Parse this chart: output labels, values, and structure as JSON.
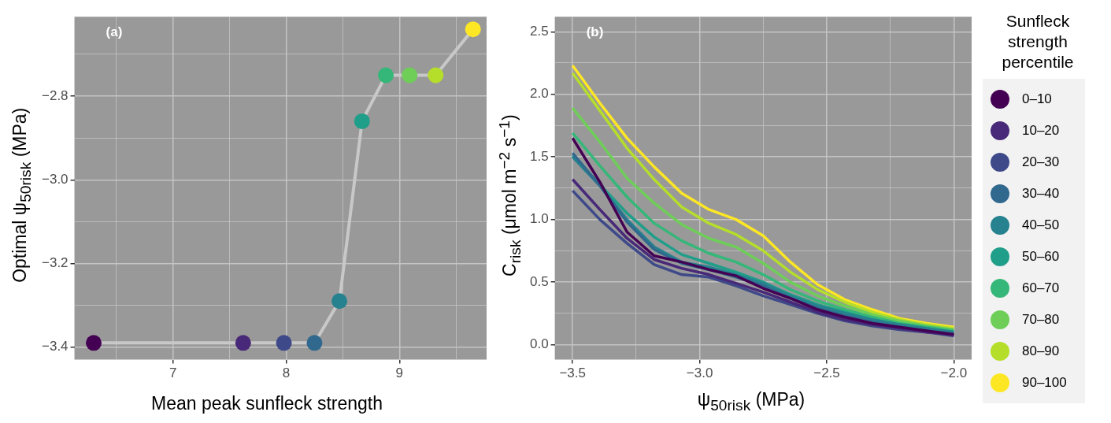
{
  "chart_data": [
    {
      "type": "line",
      "annotations": [
        "(a)"
      ],
      "xlabel": "Mean peak sunfleck strength",
      "ylabel": "Optimal ψ$_{50risk}$ (MPa)",
      "grid": true,
      "marker": "circle",
      "xlim": [
        6.13,
        9.77
      ],
      "xticks": [
        {
          "value": 6.5,
          "label": null
        },
        7,
        {
          "value": 7.5,
          "label": null
        },
        8,
        {
          "value": 8.5,
          "label": null
        },
        9,
        {
          "value": 9.5,
          "label": null
        }
      ],
      "ylim": [
        -3.43,
        -2.61
      ],
      "yticks": [
        {
          "value": -3.4,
          "label": "−3.4"
        },
        {
          "value": -3.3,
          "label": null
        },
        {
          "value": -3.2,
          "label": "−3.2"
        },
        {
          "value": -3.1,
          "label": null
        },
        {
          "value": -3.0,
          "label": "−3.0"
        },
        {
          "value": -2.9,
          "label": null
        },
        {
          "value": -2.8,
          "label": "−2.8"
        },
        {
          "value": -2.7,
          "label": null
        }
      ],
      "series": [
        {
          "color": "#c8c8c8",
          "x": [
            6.3,
            7.62,
            7.98,
            8.25,
            8.47,
            8.67,
            8.88,
            9.09,
            9.32,
            9.65
          ],
          "values": [
            -3.39,
            -3.39,
            -3.39,
            -3.39,
            -3.29,
            -2.86,
            -2.75,
            -2.75,
            -2.75,
            -2.64
          ],
          "colors": [
            "#440154",
            "#482878",
            "#3e4989",
            "#31688e",
            "#26828e",
            "#1f9e89",
            "#35b779",
            "#6ece58",
            "#b5de2b",
            "#fde725"
          ]
        }
      ]
    },
    {
      "type": "line",
      "annotations": [
        "(b)"
      ],
      "xlabel": "ψ$_{50risk}$ (MPa)",
      "ylabel": "C$_{risk}$ (μmol m$^{−2}$ s$^{−1}$)",
      "grid": true,
      "legend": "right",
      "legend_title": "Sunfleck strength percentile",
      "xlim": [
        -3.57,
        -1.93
      ],
      "xticks": [
        {
          "value": -3.5,
          "label": "−3.5"
        },
        {
          "value": -3.25,
          "label": null
        },
        {
          "value": -3.0,
          "label": "−3.0"
        },
        {
          "value": -2.75,
          "label": null
        },
        {
          "value": -2.5,
          "label": "−2.5"
        },
        {
          "value": -2.25,
          "label": null
        },
        {
          "value": -2.0,
          "label": "−2.0"
        }
      ],
      "ylim": [
        -0.12,
        2.62
      ],
      "yticks": [
        {
          "value": 0,
          "label": "0.0"
        },
        {
          "value": 0.25,
          "label": null
        },
        {
          "value": 0.5,
          "label": "0.5"
        },
        {
          "value": 0.75,
          "label": null
        },
        {
          "value": 1,
          "label": "1.0"
        },
        {
          "value": 1.25,
          "label": null
        },
        {
          "value": 1.5,
          "label": "1.5"
        },
        {
          "value": 1.75,
          "label": null
        },
        {
          "value": 2,
          "label": "2.0"
        },
        {
          "value": 2.25,
          "label": null
        },
        {
          "value": 2.5,
          "label": "2.5"
        }
      ],
      "x": [
        -3.5,
        -3.393,
        -3.286,
        -3.179,
        -3.071,
        -2.964,
        -2.857,
        -2.75,
        -2.643,
        -2.536,
        -2.429,
        -2.321,
        -2.214,
        -2.107,
        -2.0
      ],
      "series": [
        {
          "name": "0–10",
          "color": "#440154",
          "values": [
            1.65,
            1.3,
            0.9,
            0.71,
            0.66,
            0.6,
            0.55,
            0.45,
            0.37,
            0.28,
            0.22,
            0.17,
            0.14,
            0.11,
            0.08
          ]
        },
        {
          "name": "10–20",
          "color": "#482878",
          "values": [
            1.32,
            1.08,
            0.85,
            0.68,
            0.61,
            0.56,
            0.49,
            0.42,
            0.34,
            0.26,
            0.2,
            0.16,
            0.13,
            0.1,
            0.08
          ]
        },
        {
          "name": "20–30",
          "color": "#3e4989",
          "values": [
            1.23,
            1.0,
            0.81,
            0.64,
            0.56,
            0.54,
            0.47,
            0.39,
            0.32,
            0.25,
            0.19,
            0.15,
            0.12,
            0.1,
            0.07
          ]
        },
        {
          "name": "30–40",
          "color": "#31688e",
          "values": [
            1.53,
            1.27,
            0.98,
            0.76,
            0.65,
            0.6,
            0.54,
            0.47,
            0.37,
            0.29,
            0.23,
            0.18,
            0.14,
            0.11,
            0.09
          ]
        },
        {
          "name": "40–50",
          "color": "#26828e",
          "values": [
            1.5,
            1.27,
            1.0,
            0.78,
            0.66,
            0.62,
            0.56,
            0.49,
            0.39,
            0.31,
            0.25,
            0.2,
            0.16,
            0.13,
            0.1
          ]
        },
        {
          "name": "50–60",
          "color": "#1f9e89",
          "values": [
            1.51,
            1.28,
            1.05,
            0.86,
            0.72,
            0.65,
            0.58,
            0.5,
            0.4,
            0.32,
            0.26,
            0.2,
            0.16,
            0.13,
            0.1
          ]
        },
        {
          "name": "60–70",
          "color": "#35b779",
          "values": [
            1.69,
            1.43,
            1.18,
            0.97,
            0.83,
            0.73,
            0.66,
            0.56,
            0.44,
            0.35,
            0.28,
            0.22,
            0.17,
            0.14,
            0.11
          ]
        },
        {
          "name": "70–80",
          "color": "#6ece58",
          "values": [
            1.89,
            1.62,
            1.33,
            1.13,
            0.96,
            0.85,
            0.78,
            0.65,
            0.5,
            0.39,
            0.31,
            0.24,
            0.19,
            0.15,
            0.12
          ]
        },
        {
          "name": "80–90",
          "color": "#b5de2b",
          "values": [
            2.17,
            1.87,
            1.57,
            1.32,
            1.1,
            0.97,
            0.88,
            0.75,
            0.58,
            0.44,
            0.34,
            0.26,
            0.2,
            0.16,
            0.13
          ]
        },
        {
          "name": "90–100",
          "color": "#fde725",
          "values": [
            2.23,
            1.93,
            1.65,
            1.42,
            1.21,
            1.08,
            1.0,
            0.87,
            0.66,
            0.48,
            0.36,
            0.28,
            0.21,
            0.17,
            0.14
          ]
        }
      ]
    }
  ]
}
